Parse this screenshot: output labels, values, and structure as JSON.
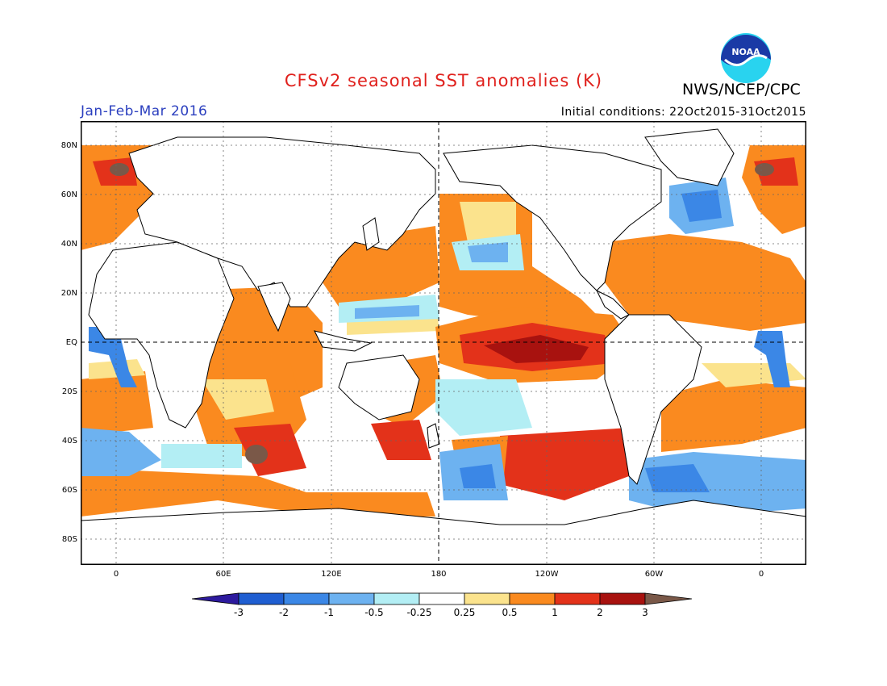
{
  "header": {
    "title": "CFSv2 seasonal SST anomalies (K)",
    "agency": "NWS/NCEP/CPC",
    "period": "Jan-Feb-Mar 2016",
    "initial_conditions": "Initial conditions: 22Oct2015-31Oct2015",
    "title_color": "#e0201c",
    "period_color": "#2b3fbf",
    "logo_text": "NOAA"
  },
  "axes": {
    "lat_labels": [
      "80N",
      "60N",
      "40N",
      "20N",
      "EQ",
      "20S",
      "40S",
      "60S",
      "80S"
    ],
    "lon_labels": [
      "0",
      "60E",
      "120E",
      "180",
      "120W",
      "60W",
      "0"
    ]
  },
  "colorbar": {
    "labels": [
      "-3",
      "-2",
      "-1",
      "-0.5",
      "-0.25",
      "0.25",
      "0.5",
      "1",
      "2",
      "3"
    ],
    "colors": [
      "#2d1a9e",
      "#1f5ed1",
      "#3b87e6",
      "#6db2f0",
      "#b3eef4",
      "#ffffff",
      "#fbe38d",
      "#fa8a1f",
      "#e3321a",
      "#a8120f",
      "#7a5848"
    ]
  }
}
